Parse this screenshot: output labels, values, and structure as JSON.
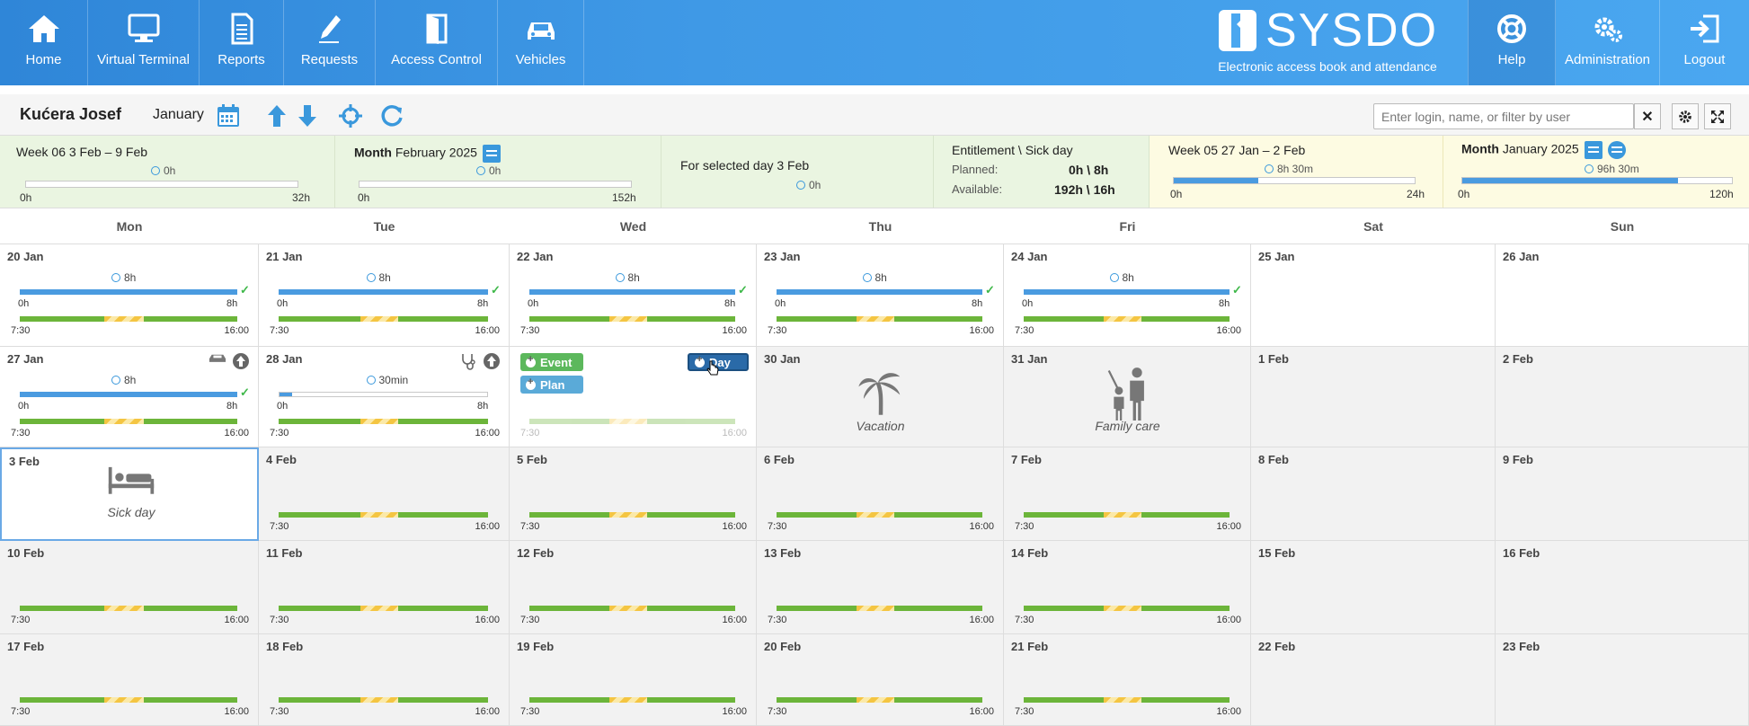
{
  "nav_left": [
    {
      "label": "Home",
      "icon": "home-icon"
    },
    {
      "label": "Virtual Terminal",
      "icon": "monitor-icon"
    },
    {
      "label": "Reports",
      "icon": "document-icon"
    },
    {
      "label": "Requests",
      "icon": "pen-icon"
    },
    {
      "label": "Access Control",
      "icon": "door-icon"
    },
    {
      "label": "Vehicles",
      "icon": "car-icon"
    }
  ],
  "brand": {
    "name": "SYSDO",
    "tagline": "Electronic access book and attendance"
  },
  "nav_right": [
    {
      "label": "Help",
      "icon": "lifebuoy-icon"
    },
    {
      "label": "Administration",
      "icon": "gears-icon"
    },
    {
      "label": "Logout",
      "icon": "logout-icon"
    }
  ],
  "toolbar": {
    "user": "Kućera Josef",
    "month": "January",
    "filter_placeholder": "Enter login, name, or filter by user",
    "clear_label": "✕"
  },
  "summary": {
    "week": {
      "title": "Week 06 3 Feb – 9 Feb",
      "hours": "0h",
      "min": "0h",
      "max": "32h",
      "fill": 0
    },
    "month": {
      "title_bold": "Month",
      "title_rest": "February 2025",
      "hours": "0h",
      "min": "0h",
      "max": "152h",
      "fill": 0
    },
    "selected": {
      "title": "For selected day 3 Feb",
      "hours": "0h"
    },
    "entitlement": {
      "title": "Entitlement \\ Sick day",
      "planned_label": "Planned:",
      "planned_value": "0h \\ 8h",
      "available_label": "Available:",
      "available_value": "192h \\ 16h"
    },
    "prev_week": {
      "title": "Week 05 27 Jan – 2 Feb",
      "hours": "8h 30m",
      "min": "0h",
      "max": "24h",
      "fill": 0.35
    },
    "prev_month": {
      "title_bold": "Month",
      "title_rest": "January 2025",
      "hours": "96h 30m",
      "min": "0h",
      "max": "120h",
      "fill": 0.8
    }
  },
  "days": [
    "Mon",
    "Tue",
    "Wed",
    "Thu",
    "Fri",
    "Sat",
    "Sun"
  ],
  "weeks": [
    [
      {
        "date": "20 Jan",
        "type": "work",
        "hours": "8h",
        "fill": 1,
        "min": "0h",
        "max": "8h",
        "check": "✓",
        "start": "7:30",
        "end": "16:00"
      },
      {
        "date": "21 Jan",
        "type": "work",
        "hours": "8h",
        "fill": 1,
        "min": "0h",
        "max": "8h",
        "check": "✓",
        "start": "7:30",
        "end": "16:00"
      },
      {
        "date": "22 Jan",
        "type": "work",
        "hours": "8h",
        "fill": 1,
        "min": "0h",
        "max": "8h",
        "check": "✓",
        "start": "7:30",
        "end": "16:00"
      },
      {
        "date": "23 Jan",
        "type": "work",
        "hours": "8h",
        "fill": 1,
        "min": "0h",
        "max": "8h",
        "check": "✓",
        "start": "7:30",
        "end": "16:00"
      },
      {
        "date": "24 Jan",
        "type": "work",
        "hours": "8h",
        "fill": 1,
        "min": "0h",
        "max": "8h",
        "check": "✓",
        "start": "7:30",
        "end": "16:00"
      },
      {
        "date": "25 Jan",
        "type": "free"
      },
      {
        "date": "26 Jan",
        "type": "free"
      }
    ],
    [
      {
        "date": "27 Jan",
        "type": "work",
        "hours": "8h",
        "fill": 1,
        "min": "0h",
        "max": "8h",
        "check": "✓",
        "start": "7:30",
        "end": "16:00",
        "icons": [
          "car-icon",
          "arrow-up-icon"
        ]
      },
      {
        "date": "28 Jan",
        "type": "work",
        "hours": "30min",
        "fill": 0.06,
        "min": "0h",
        "max": "8h",
        "start": "7:30",
        "end": "16:00",
        "icons": [
          "stethoscope-icon",
          "arrow-up-icon"
        ]
      },
      {
        "date": "",
        "type": "events",
        "event_label": "Event",
        "plan_label": "Plan",
        "day_label": "Day",
        "start": "7:30",
        "end": "16:00"
      },
      {
        "date": "30 Jan",
        "type": "absence",
        "label": "Vacation",
        "icon": "palm-tree-icon"
      },
      {
        "date": "31 Jan",
        "type": "absence",
        "label": "Family care",
        "icon": "family-icon"
      },
      {
        "date": "1 Feb",
        "type": "free",
        "grey": true
      },
      {
        "date": "2 Feb",
        "type": "free",
        "grey": true
      }
    ],
    [
      {
        "date": "3 Feb",
        "type": "absence",
        "label": "Sick day",
        "icon": "bed-icon",
        "selected": true
      },
      {
        "date": "4 Feb",
        "type": "plan",
        "start": "7:30",
        "end": "16:00"
      },
      {
        "date": "5 Feb",
        "type": "plan",
        "start": "7:30",
        "end": "16:00"
      },
      {
        "date": "6 Feb",
        "type": "plan",
        "start": "7:30",
        "end": "16:00"
      },
      {
        "date": "7 Feb",
        "type": "plan",
        "start": "7:30",
        "end": "16:00"
      },
      {
        "date": "8 Feb",
        "type": "free",
        "grey": true
      },
      {
        "date": "9 Feb",
        "type": "free",
        "grey": true
      }
    ],
    [
      {
        "date": "10 Feb",
        "type": "plan",
        "start": "7:30",
        "end": "16:00"
      },
      {
        "date": "11 Feb",
        "type": "plan",
        "start": "7:30",
        "end": "16:00"
      },
      {
        "date": "12 Feb",
        "type": "plan",
        "start": "7:30",
        "end": "16:00"
      },
      {
        "date": "13 Feb",
        "type": "plan",
        "start": "7:30",
        "end": "16:00"
      },
      {
        "date": "14 Feb",
        "type": "plan",
        "start": "7:30",
        "end": "16:00"
      },
      {
        "date": "15 Feb",
        "type": "free",
        "grey": true
      },
      {
        "date": "16 Feb",
        "type": "free",
        "grey": true
      }
    ],
    [
      {
        "date": "17 Feb",
        "type": "plan",
        "start": "7:30",
        "end": "16:00"
      },
      {
        "date": "18 Feb",
        "type": "plan",
        "start": "7:30",
        "end": "16:00"
      },
      {
        "date": "19 Feb",
        "type": "plan",
        "start": "7:30",
        "end": "16:00"
      },
      {
        "date": "20 Feb",
        "type": "plan",
        "start": "7:30",
        "end": "16:00"
      },
      {
        "date": "21 Feb",
        "type": "plan",
        "start": "7:30",
        "end": "16:00"
      },
      {
        "date": "22 Feb",
        "type": "free",
        "grey": true
      },
      {
        "date": "23 Feb",
        "type": "free",
        "grey": true
      }
    ]
  ],
  "colors": {
    "accent": "#4a9be0",
    "work": "#6cb53a",
    "break": "#f4c542",
    "event": "#5cb85c",
    "plan": "#5aaad8",
    "day": "#2a6aa8"
  }
}
